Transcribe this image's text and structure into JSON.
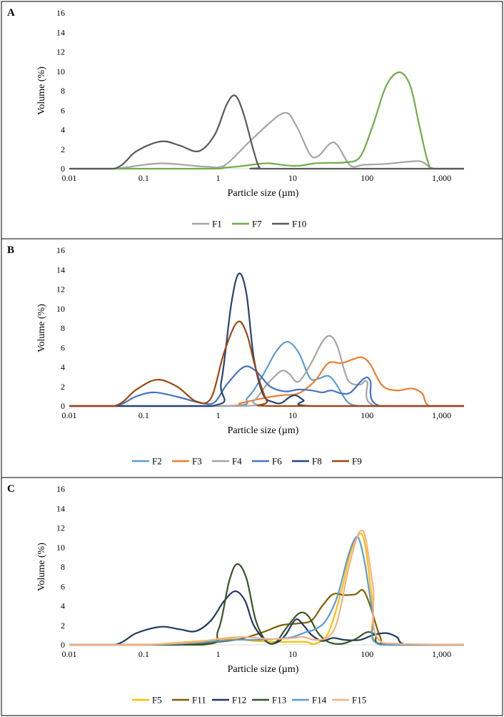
{
  "chart_data": [
    {
      "type": "line",
      "panel_label": "A",
      "xlabel": "Particle size (µm)",
      "ylabel": "Volume (%)",
      "x_scale": "log",
      "xlim": [
        0.01,
        2000
      ],
      "ylim": [
        0,
        16
      ],
      "x_ticks": [
        0.01,
        0.1,
        1,
        10,
        100,
        1000
      ],
      "x_tick_labels": [
        "0.01",
        "0.1",
        "1",
        "10",
        "100",
        "1,000"
      ],
      "y_ticks": [
        0,
        2,
        4,
        6,
        8,
        10,
        12,
        14,
        16
      ],
      "y_tick_labels": [
        "0",
        "2",
        "4",
        "6",
        "8",
        "10",
        "12",
        "14",
        "16"
      ],
      "legend_position": "bottom",
      "series": [
        {
          "name": "F1",
          "color": "#a5a5a5",
          "x": [
            0.01,
            0.04,
            0.1,
            0.18,
            0.35,
            0.7,
            1.2,
            3,
            7.5,
            11,
            17,
            22,
            32,
            40,
            60,
            90,
            180,
            400,
            550,
            800,
            2000
          ],
          "y": [
            0,
            0,
            0.4,
            0.55,
            0.4,
            0.2,
            0.3,
            3.2,
            5.7,
            4.5,
            1.5,
            1.3,
            2.6,
            2.4,
            0.3,
            0.4,
            0.5,
            0.75,
            0.7,
            0,
            0
          ]
        },
        {
          "name": "F7",
          "color": "#70ad47",
          "x": [
            0.01,
            0.7,
            1.2,
            2,
            3.5,
            5,
            8,
            12,
            20,
            30,
            50,
            80,
            120,
            180,
            270,
            380,
            500,
            650,
            800,
            2000
          ],
          "y": [
            0,
            0,
            0.1,
            0.25,
            0.5,
            0.55,
            0.35,
            0.3,
            0.55,
            0.6,
            0.65,
            1.2,
            4.5,
            8.5,
            9.9,
            8.5,
            4.5,
            0.8,
            0,
            0
          ]
        },
        {
          "name": "F10",
          "color": "#595959",
          "x": [
            0.01,
            0.04,
            0.08,
            0.17,
            0.3,
            0.55,
            0.9,
            1.3,
            1.7,
            2.2,
            3.0,
            3.6,
            4.5,
            2000
          ],
          "y": [
            0,
            0,
            1.8,
            2.8,
            2.4,
            1.8,
            3.5,
            6.6,
            7.5,
            5.6,
            1.8,
            0.1,
            0,
            0
          ]
        }
      ]
    },
    {
      "type": "line",
      "panel_label": "B",
      "xlabel": "Particle size (µm)",
      "ylabel": "Volume (%)",
      "x_scale": "log",
      "xlim": [
        0.01,
        2000
      ],
      "ylim": [
        0,
        16
      ],
      "x_ticks": [
        0.01,
        0.1,
        1,
        10,
        100,
        1000
      ],
      "x_tick_labels": [
        "0.01",
        "0.1",
        "1",
        "10",
        "100",
        "1,000"
      ],
      "y_ticks": [
        0,
        2,
        4,
        6,
        8,
        10,
        12,
        14,
        16
      ],
      "y_tick_labels": [
        "0",
        "2",
        "4",
        "6",
        "8",
        "10",
        "12",
        "14",
        "16"
      ],
      "legend_position": "bottom",
      "series": [
        {
          "name": "F2",
          "color": "#5b9bd5",
          "x": [
            0.01,
            1.4,
            2.5,
            4,
            6,
            8.5,
            12,
            17,
            22,
            30,
            38,
            55,
            80,
            110,
            2000
          ],
          "y": [
            0,
            0,
            0.9,
            3.2,
            5.6,
            6.6,
            5.5,
            2.9,
            2.8,
            3.1,
            2.3,
            0.4,
            0,
            0,
            0
          ]
        },
        {
          "name": "F3",
          "color": "#ed7d31",
          "x": [
            0.01,
            1.2,
            2,
            4,
            7,
            12,
            20,
            30,
            45,
            65,
            85,
            110,
            160,
            250,
            400,
            550,
            700,
            2000
          ],
          "y": [
            0,
            0,
            0.3,
            0.8,
            1.1,
            1.3,
            2.6,
            4.4,
            4.4,
            4.8,
            5.0,
            4.3,
            2.1,
            1.6,
            1.8,
            1.3,
            0,
            0
          ]
        },
        {
          "name": "F4",
          "color": "#a5a5a5",
          "x": [
            0.01,
            2,
            3,
            4.5,
            7,
            9,
            12,
            18,
            25,
            32,
            40,
            55,
            80,
            100,
            130,
            2000
          ],
          "y": [
            0,
            0,
            0.5,
            2.2,
            3.6,
            3.3,
            2.5,
            4.5,
            6.6,
            7.2,
            6.1,
            2.7,
            2.2,
            2.5,
            0,
            0
          ]
        },
        {
          "name": "F6",
          "color": "#4472c4",
          "x": [
            0.01,
            0.04,
            0.08,
            0.14,
            0.3,
            0.6,
            0.9,
            1.3,
            2.2,
            3.2,
            5,
            8,
            12,
            18,
            25,
            33,
            45,
            60,
            90,
            110,
            150,
            2000
          ],
          "y": [
            0,
            0,
            1.0,
            1.4,
            0.9,
            0.3,
            0.4,
            2.2,
            4.0,
            3.6,
            2.0,
            1.5,
            1.7,
            1.6,
            1.4,
            1.6,
            1.3,
            1.4,
            2.8,
            2.6,
            0,
            0
          ]
        },
        {
          "name": "F8",
          "color": "#264478",
          "x": [
            0.01,
            0.8,
            1.1,
            1.5,
            1.9,
            2.4,
            3.0,
            4.0,
            5.5,
            7,
            9,
            11,
            14,
            18,
            2000
          ],
          "y": [
            0,
            0,
            2.5,
            10.5,
            13.6,
            11.5,
            5.0,
            1.2,
            0.4,
            0.3,
            0.9,
            1.1,
            0.6,
            0,
            0
          ]
        },
        {
          "name": "F9",
          "color": "#9e480e",
          "x": [
            0.01,
            0.04,
            0.08,
            0.15,
            0.28,
            0.5,
            0.8,
            1.2,
            1.8,
            2.4,
            3.2,
            4.5,
            5.5,
            2000
          ],
          "y": [
            0,
            0,
            1.7,
            2.7,
            2.0,
            0.5,
            0.8,
            5.5,
            8.6,
            7.5,
            3.8,
            0.5,
            0,
            0
          ]
        }
      ]
    },
    {
      "type": "line",
      "panel_label": "C",
      "xlabel": "Particle size (µm)",
      "ylabel": "Volume (%)",
      "x_scale": "log",
      "xlim": [
        0.01,
        2000
      ],
      "ylim": [
        0,
        16
      ],
      "x_ticks": [
        0.01,
        0.1,
        1,
        10,
        100,
        1000
      ],
      "x_tick_labels": [
        "0.01",
        "0.1",
        "1",
        "10",
        "100",
        "1,000"
      ],
      "y_ticks": [
        0,
        2,
        4,
        6,
        8,
        10,
        12,
        14,
        16
      ],
      "y_tick_labels": [
        "0",
        "2",
        "4",
        "6",
        "8",
        "10",
        "12",
        "14",
        "16"
      ],
      "legend_position": "bottom",
      "series": [
        {
          "name": "F5",
          "color": "#ffc000",
          "x": [
            0.01,
            0.1,
            0.4,
            1,
            1.7,
            3,
            6,
            10,
            15,
            20,
            30,
            45,
            60,
            80,
            95,
            120,
            150,
            2000
          ],
          "y": [
            0,
            0,
            0.3,
            0.5,
            0.6,
            0.4,
            0.3,
            0.3,
            0.3,
            0.1,
            1.2,
            5.5,
            9.5,
            11.4,
            10.0,
            4.0,
            0,
            0
          ]
        },
        {
          "name": "F11",
          "color": "#7f6000",
          "x": [
            0.01,
            0.3,
            1,
            2,
            4,
            7,
            12,
            18,
            25,
            35,
            50,
            70,
            88,
            110,
            150,
            200,
            2000
          ],
          "y": [
            0,
            0,
            0.3,
            0.6,
            1.3,
            2.0,
            2.2,
            2.5,
            4.0,
            5.2,
            5.1,
            5.2,
            5.6,
            4.0,
            0.8,
            0,
            0
          ]
        },
        {
          "name": "F12",
          "color": "#203864",
          "x": [
            0.01,
            0.04,
            0.08,
            0.17,
            0.3,
            0.5,
            0.8,
            1.2,
            1.7,
            2.3,
            3,
            4.5,
            6,
            8,
            11,
            14,
            18,
            25,
            35,
            50,
            80,
            120,
            180,
            250,
            350,
            2000
          ],
          "y": [
            0,
            0,
            1.2,
            1.85,
            1.6,
            1.4,
            2.5,
            4.5,
            5.5,
            4.5,
            2.0,
            0.3,
            0.2,
            1.0,
            2.6,
            2.0,
            1.0,
            0.4,
            0.7,
            0.5,
            0.5,
            1.0,
            1.2,
            0.8,
            0,
            0
          ]
        },
        {
          "name": "F13",
          "color": "#375623",
          "x": [
            0.01,
            0.6,
            1.0,
            1.4,
            1.8,
            2.4,
            3.2,
            4.5,
            6,
            8,
            12,
            16,
            22,
            30,
            45,
            70,
            100,
            130,
            170,
            2000
          ],
          "y": [
            0,
            0,
            1.5,
            6.5,
            8.3,
            6.8,
            2.5,
            0.3,
            0.3,
            1.6,
            3.2,
            3.0,
            1.2,
            0.3,
            0.1,
            0.6,
            1.3,
            1.0,
            0,
            0
          ]
        },
        {
          "name": "F14",
          "color": "#5b9bd5",
          "x": [
            0.01,
            0.1,
            0.5,
            1.5,
            3,
            6,
            10,
            15,
            20,
            28,
            40,
            55,
            70,
            80,
            95,
            120,
            150,
            2000
          ],
          "y": [
            0,
            0,
            0.2,
            0.5,
            0.5,
            0.6,
            0.8,
            1.3,
            1.6,
            2.5,
            5.0,
            9.0,
            11.0,
            10.6,
            8.0,
            3.0,
            0,
            0
          ]
        },
        {
          "name": "F15",
          "color": "#f4b183",
          "x": [
            0.01,
            0.1,
            0.5,
            1,
            2,
            5,
            10,
            14,
            20,
            30,
            40,
            55,
            70,
            82,
            95,
            120,
            160,
            2000
          ],
          "y": [
            0,
            0,
            0.3,
            0.6,
            0.8,
            0.6,
            0.7,
            0.8,
            0.5,
            0.8,
            2.5,
            7.5,
            10.6,
            11.7,
            11.0,
            6.0,
            0.2,
            0
          ]
        }
      ]
    }
  ]
}
